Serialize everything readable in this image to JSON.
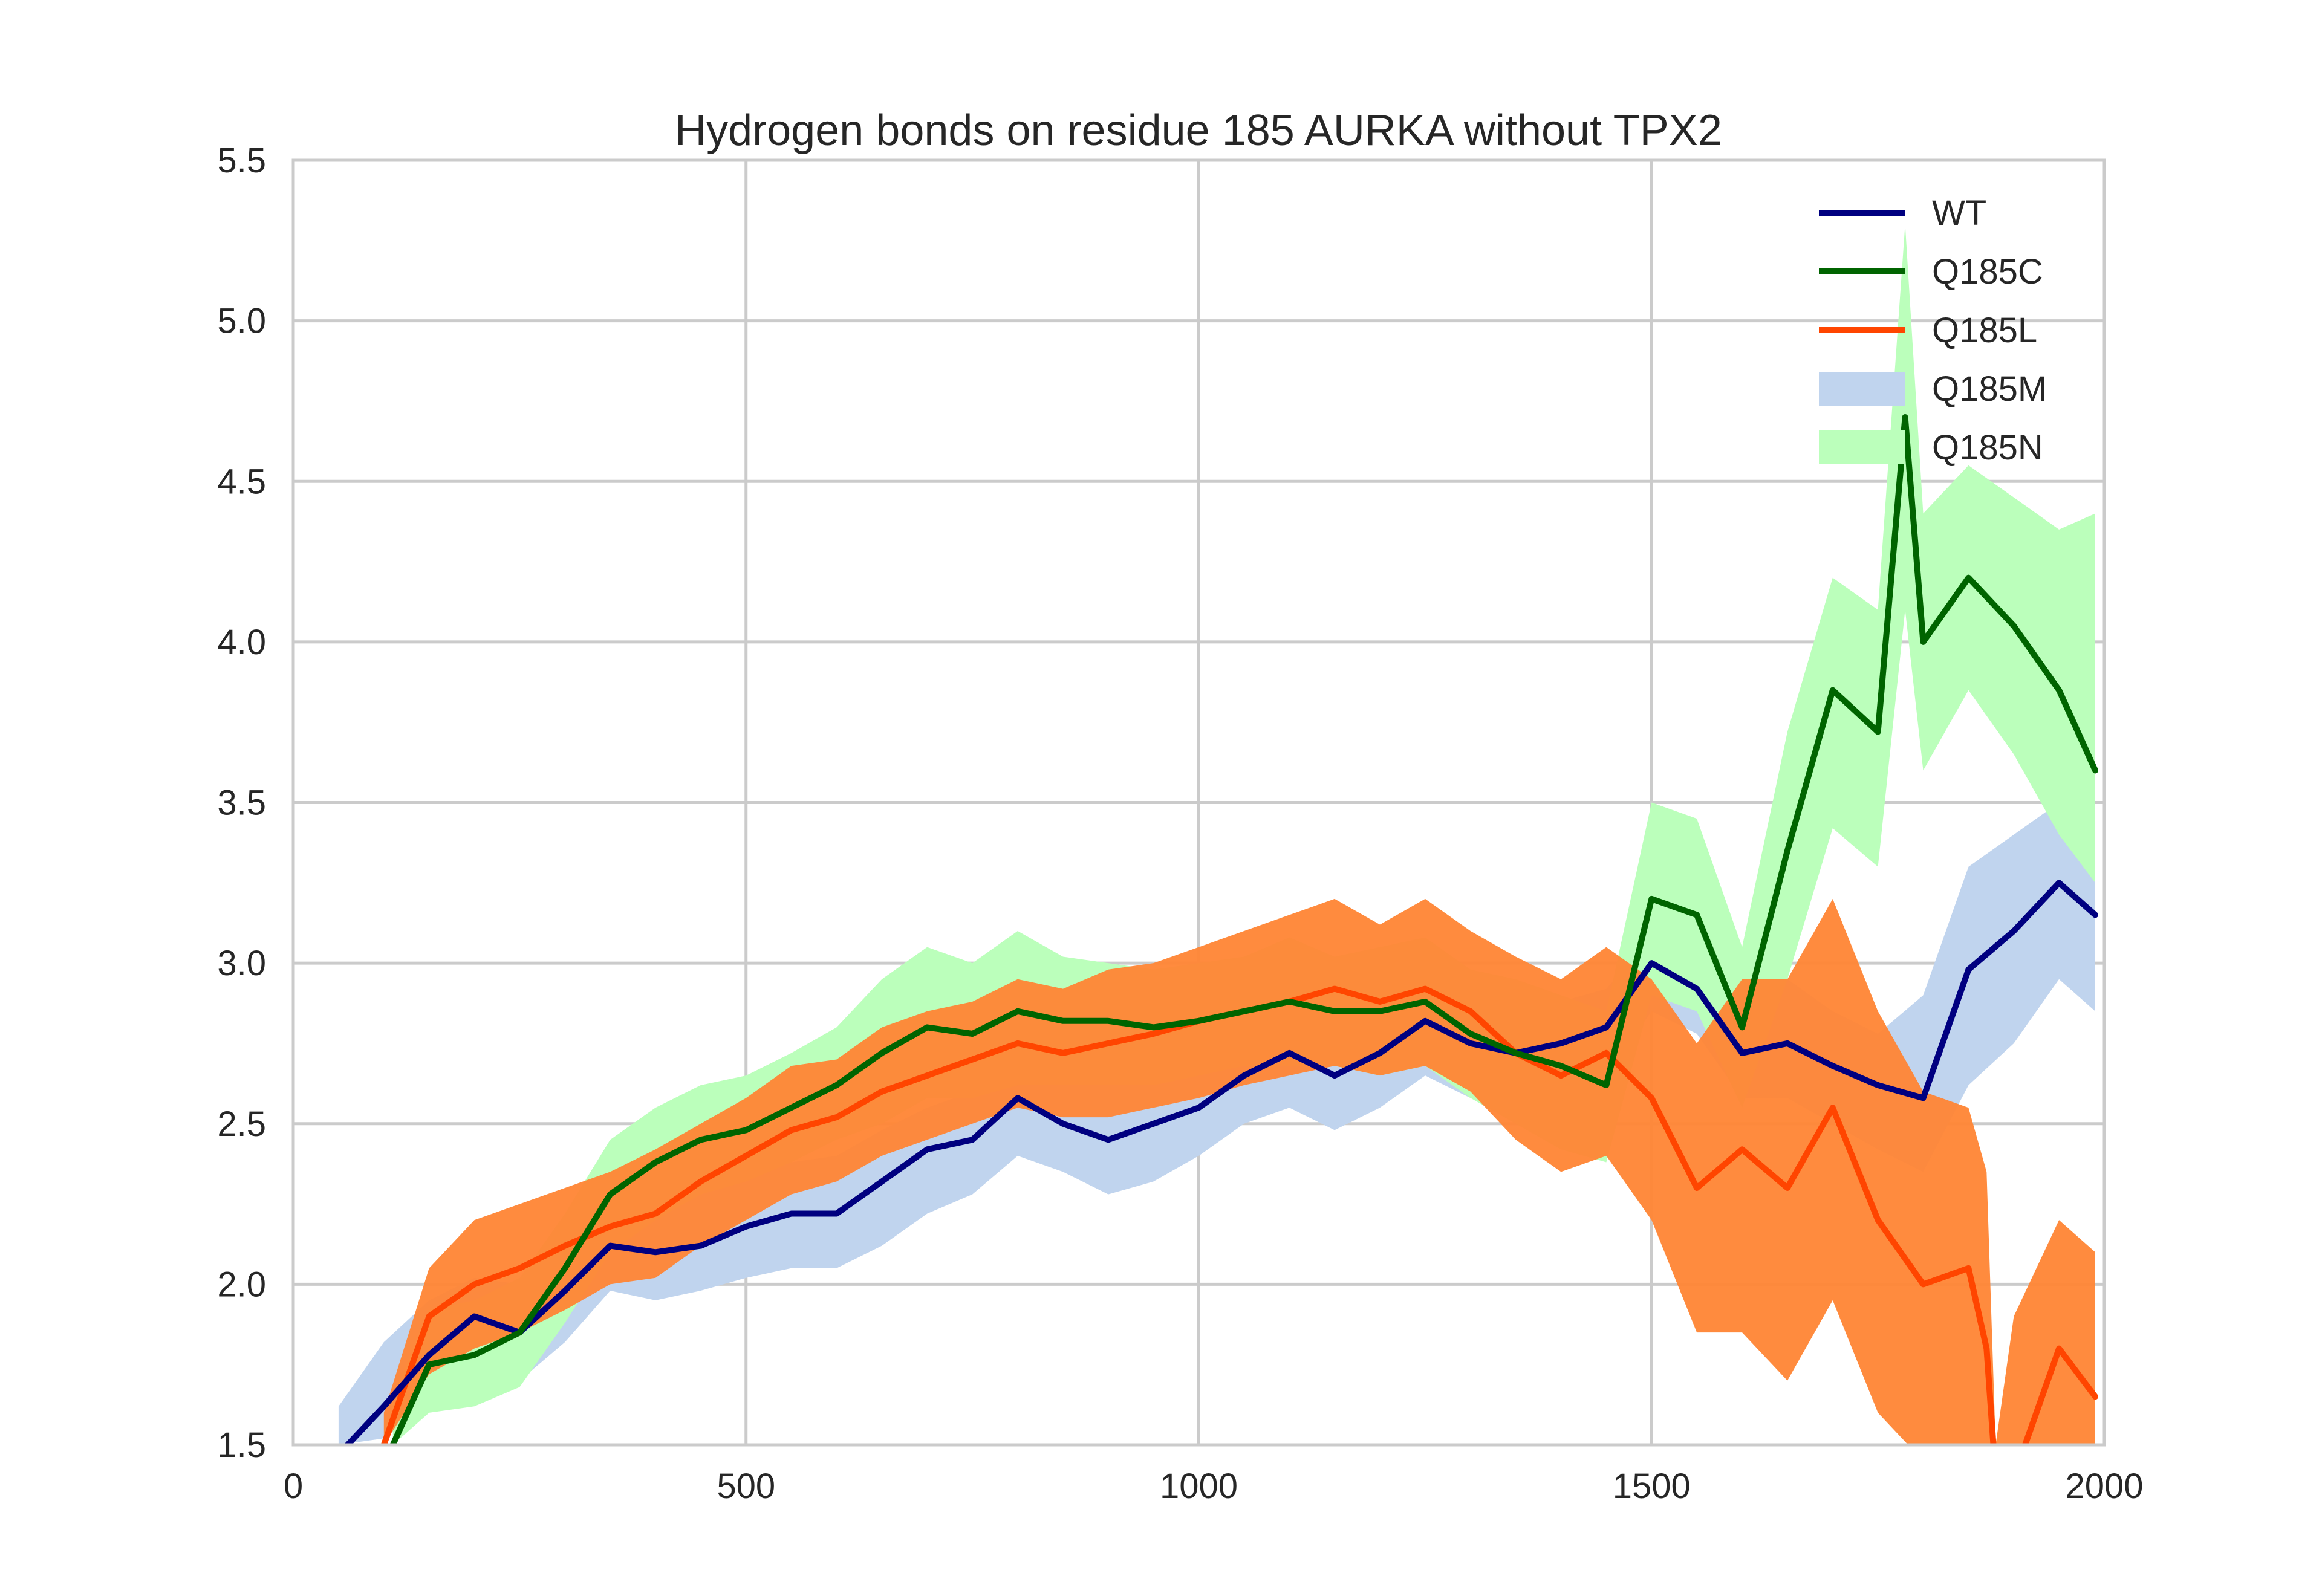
{
  "chart_data": {
    "type": "line",
    "title": "Hydrogen bonds on residue 185 AURKA without TPX2",
    "xlabel": "",
    "ylabel": "",
    "xlim": [
      0,
      2000
    ],
    "ylim": [
      1.5,
      5.5
    ],
    "xticks": [
      "0",
      "500",
      "1000",
      "1500",
      "2000"
    ],
    "yticks": [
      "1.5",
      "2.0",
      "2.5",
      "3.0",
      "3.5",
      "4.0",
      "4.5",
      "5.0",
      "5.5"
    ],
    "grid": true,
    "legend_position": "top-right",
    "lines": [
      {
        "name": "WT",
        "kind": "line",
        "color": "#000080",
        "x": [
          60,
          100,
          150,
          200,
          250,
          300,
          350,
          400,
          450,
          500,
          550,
          600,
          650,
          700,
          750,
          800,
          850,
          900,
          950,
          1000,
          1050,
          1100,
          1150,
          1200,
          1250,
          1300,
          1350,
          1400,
          1450,
          1500,
          1550,
          1600,
          1650,
          1700,
          1750,
          1800,
          1850,
          1900,
          1950,
          1990
        ],
        "y": [
          1.5,
          1.62,
          1.78,
          1.9,
          1.85,
          1.98,
          2.12,
          2.1,
          2.12,
          2.18,
          2.22,
          2.22,
          2.32,
          2.42,
          2.45,
          2.58,
          2.5,
          2.45,
          2.5,
          2.55,
          2.65,
          2.72,
          2.65,
          2.72,
          2.82,
          2.75,
          2.72,
          2.75,
          2.8,
          3.0,
          2.92,
          2.72,
          2.75,
          2.68,
          2.62,
          2.58,
          2.98,
          3.1,
          3.25,
          3.15
        ]
      },
      {
        "name": "Q185C",
        "kind": "line",
        "color": "#006400",
        "x": [
          110,
          150,
          200,
          250,
          300,
          350,
          400,
          450,
          500,
          550,
          600,
          650,
          700,
          750,
          800,
          850,
          900,
          950,
          1000,
          1050,
          1100,
          1150,
          1200,
          1250,
          1300,
          1350,
          1400,
          1450,
          1500,
          1550,
          1600,
          1650,
          1700,
          1750,
          1780,
          1800,
          1850,
          1900,
          1950,
          1990
        ],
        "y": [
          1.5,
          1.75,
          1.78,
          1.85,
          2.05,
          2.28,
          2.38,
          2.45,
          2.48,
          2.55,
          2.62,
          2.72,
          2.8,
          2.78,
          2.85,
          2.82,
          2.82,
          2.8,
          2.82,
          2.85,
          2.88,
          2.85,
          2.85,
          2.88,
          2.78,
          2.72,
          2.68,
          2.62,
          3.2,
          3.15,
          2.8,
          3.35,
          3.85,
          3.72,
          4.7,
          4.0,
          4.2,
          4.05,
          3.85,
          3.6
        ]
      },
      {
        "name": "Q185L",
        "kind": "line",
        "color": "#ff4500",
        "x": [
          100,
          150,
          200,
          250,
          300,
          350,
          400,
          450,
          500,
          550,
          600,
          650,
          700,
          750,
          800,
          850,
          900,
          950,
          1000,
          1050,
          1100,
          1150,
          1200,
          1250,
          1300,
          1350,
          1400,
          1450,
          1500,
          1550,
          1600,
          1650,
          1700,
          1750,
          1800,
          1850,
          1870,
          1880,
          1900,
          1950,
          1990
        ],
        "y": [
          1.5,
          1.9,
          2.0,
          2.05,
          2.12,
          2.18,
          2.22,
          2.32,
          2.4,
          2.48,
          2.52,
          2.6,
          2.65,
          2.7,
          2.75,
          2.72,
          2.75,
          2.78,
          2.82,
          2.85,
          2.88,
          2.92,
          2.88,
          2.92,
          2.85,
          2.72,
          2.65,
          2.72,
          2.58,
          2.3,
          2.42,
          2.3,
          2.55,
          2.2,
          2.0,
          2.05,
          1.8,
          1.4,
          1.4,
          1.8,
          1.65
        ]
      },
      {
        "name": "Q185M",
        "kind": "band",
        "color": "#c0d4ee",
        "x": [
          50,
          100,
          150,
          200,
          250,
          300,
          350,
          400,
          450,
          500,
          550,
          600,
          650,
          700,
          750,
          800,
          850,
          900,
          950,
          1000,
          1050,
          1100,
          1150,
          1200,
          1250,
          1300,
          1350,
          1400,
          1450,
          1500,
          1550,
          1600,
          1650,
          1700,
          1750,
          1800,
          1850,
          1900,
          1950,
          1990
        ],
        "upper": [
          1.62,
          1.82,
          1.95,
          2.02,
          2.0,
          2.1,
          2.25,
          2.25,
          2.3,
          2.35,
          2.38,
          2.4,
          2.48,
          2.55,
          2.6,
          2.72,
          2.68,
          2.62,
          2.65,
          2.72,
          2.82,
          2.85,
          2.82,
          2.88,
          2.95,
          2.9,
          2.85,
          2.88,
          2.92,
          3.08,
          3.02,
          2.88,
          2.95,
          2.85,
          2.78,
          2.9,
          3.3,
          3.4,
          3.5,
          3.3
        ],
        "lower": [
          1.5,
          1.52,
          1.62,
          1.72,
          1.7,
          1.82,
          1.98,
          1.95,
          1.98,
          2.02,
          2.05,
          2.05,
          2.12,
          2.22,
          2.28,
          2.4,
          2.35,
          2.28,
          2.32,
          2.4,
          2.5,
          2.55,
          2.48,
          2.55,
          2.65,
          2.58,
          2.55,
          2.6,
          2.65,
          2.85,
          2.78,
          2.58,
          2.58,
          2.5,
          2.42,
          2.35,
          2.62,
          2.75,
          2.95,
          2.85
        ]
      },
      {
        "name": "Q185N",
        "kind": "band",
        "color": "#bbffbb",
        "x": [
          110,
          150,
          200,
          250,
          300,
          350,
          400,
          450,
          500,
          550,
          600,
          650,
          700,
          750,
          800,
          850,
          900,
          950,
          1000,
          1050,
          1100,
          1150,
          1200,
          1250,
          1300,
          1350,
          1400,
          1450,
          1500,
          1550,
          1600,
          1650,
          1700,
          1750,
          1780,
          1800,
          1850,
          1900,
          1950,
          1990
        ],
        "upper": [
          1.65,
          1.92,
          1.95,
          2.02,
          2.22,
          2.45,
          2.55,
          2.62,
          2.65,
          2.72,
          2.8,
          2.95,
          3.05,
          3.0,
          3.1,
          3.02,
          3.0,
          2.98,
          3.0,
          3.02,
          3.08,
          3.02,
          3.05,
          3.08,
          2.98,
          2.95,
          2.9,
          2.85,
          3.5,
          3.45,
          3.05,
          3.72,
          4.2,
          4.1,
          5.3,
          4.4,
          4.55,
          4.45,
          4.35,
          4.4
        ],
        "lower": [
          1.5,
          1.6,
          1.62,
          1.68,
          1.88,
          2.1,
          2.2,
          2.28,
          2.32,
          2.38,
          2.45,
          2.5,
          2.58,
          2.58,
          2.62,
          2.62,
          2.62,
          2.62,
          2.65,
          2.68,
          2.68,
          2.68,
          2.65,
          2.68,
          2.58,
          2.5,
          2.42,
          2.38,
          2.9,
          2.85,
          2.55,
          2.95,
          3.42,
          3.3,
          4.1,
          3.6,
          3.85,
          3.65,
          3.4,
          3.25
        ]
      }
    ],
    "extra_bands": [
      {
        "series": "Q185L",
        "color": "#ff8534",
        "x": [
          100,
          150,
          200,
          250,
          300,
          350,
          400,
          450,
          500,
          550,
          600,
          650,
          700,
          750,
          800,
          850,
          900,
          950,
          1000,
          1050,
          1100,
          1150,
          1200,
          1250,
          1300,
          1350,
          1400,
          1450,
          1500,
          1550,
          1600,
          1650,
          1700,
          1750,
          1800,
          1850,
          1870,
          1880,
          1900,
          1950,
          1990
        ],
        "upper": [
          1.6,
          2.05,
          2.2,
          2.25,
          2.3,
          2.35,
          2.42,
          2.5,
          2.58,
          2.68,
          2.7,
          2.8,
          2.85,
          2.88,
          2.95,
          2.92,
          2.98,
          3.0,
          3.05,
          3.1,
          3.15,
          3.2,
          3.12,
          3.2,
          3.1,
          3.02,
          2.95,
          3.05,
          2.95,
          2.75,
          2.95,
          2.95,
          3.2,
          2.85,
          2.6,
          2.55,
          2.35,
          1.5,
          1.9,
          2.2,
          2.1
        ],
        "lower": [
          1.5,
          1.72,
          1.8,
          1.85,
          1.92,
          2.0,
          2.02,
          2.12,
          2.2,
          2.28,
          2.32,
          2.4,
          2.45,
          2.5,
          2.55,
          2.52,
          2.52,
          2.55,
          2.58,
          2.62,
          2.65,
          2.68,
          2.65,
          2.68,
          2.6,
          2.45,
          2.35,
          2.4,
          2.2,
          1.85,
          1.85,
          1.7,
          1.95,
          1.6,
          1.45,
          1.5,
          1.3,
          1.3,
          1.4,
          1.5,
          1.4
        ]
      }
    ]
  }
}
